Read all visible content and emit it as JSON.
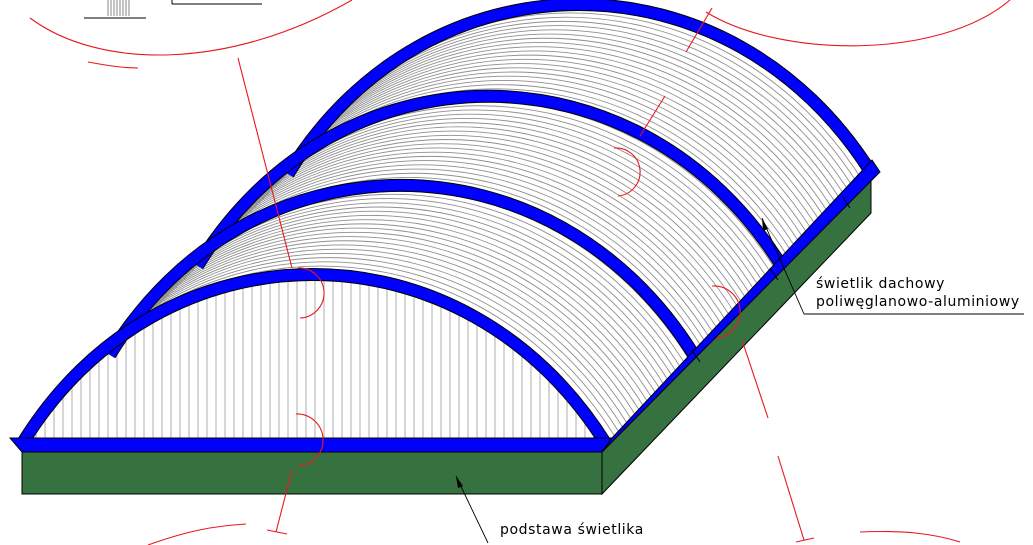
{
  "labels": {
    "skylight_line1": "świetlik dachowy",
    "skylight_line2": "poliwęglanowo-aluminiowy",
    "base": "podstawa świetlika"
  },
  "colors": {
    "frame": "#0000ff",
    "base_fill": "#357240",
    "panel_lines": "#8f8f8f",
    "detail_marks": "#e8181e",
    "outline": "#000000",
    "background": "#ffffff"
  },
  "structure": {
    "arch_ribs": 4,
    "frame_profile": "aluminium",
    "cover_material": "polycarbonate"
  }
}
